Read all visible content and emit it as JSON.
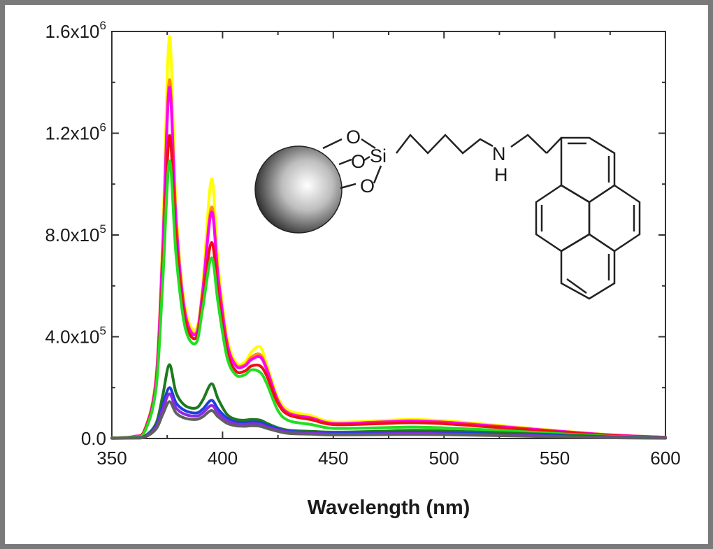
{
  "chart_data": {
    "type": "line",
    "title": "",
    "xlabel": "Wavelength (nm)",
    "ylabel": "",
    "xlim": [
      350,
      600
    ],
    "ylim": [
      0,
      1600000
    ],
    "xticks": [
      {
        "value": 350,
        "label": "350"
      },
      {
        "value": 400,
        "label": "400"
      },
      {
        "value": 450,
        "label": "450"
      },
      {
        "value": 500,
        "label": "500"
      },
      {
        "value": 550,
        "label": "550"
      },
      {
        "value": 600,
        "label": "600"
      }
    ],
    "yticks": [
      {
        "value": 0,
        "label": "0.0",
        "exp": ""
      },
      {
        "value": 400000,
        "label": "4.0x10",
        "exp": "5"
      },
      {
        "value": 800000,
        "label": "8.0x10",
        "exp": "5"
      },
      {
        "value": 1200000,
        "label": "1.2x10",
        "exp": "6"
      },
      {
        "value": 1600000,
        "label": "1.6x10",
        "exp": "6"
      }
    ],
    "grid": false,
    "legend": "none",
    "series": [
      {
        "color": "#ffff00",
        "x": [
          350,
          360,
          365,
          370,
          373,
          376,
          379,
          383,
          388,
          391,
          395,
          398,
          402,
          406,
          410,
          413,
          417,
          420,
          425,
          430,
          440,
          450,
          470,
          485,
          500,
          520,
          550,
          575,
          600
        ],
        "y": [
          2000,
          8000,
          40000,
          250000,
          800000,
          1580000,
          900000,
          520000,
          430000,
          600000,
          1020000,
          680000,
          400000,
          300000,
          300000,
          340000,
          360000,
          290000,
          160000,
          110000,
          90000,
          65000,
          70000,
          75000,
          70000,
          55000,
          32000,
          15000,
          5000
        ]
      },
      {
        "color": "#ff8c00",
        "x": [
          350,
          360,
          365,
          370,
          373,
          376,
          379,
          383,
          388,
          391,
          395,
          398,
          402,
          406,
          410,
          413,
          417,
          420,
          425,
          430,
          440,
          450,
          470,
          485,
          500,
          520,
          550,
          575,
          600
        ],
        "y": [
          2000,
          8000,
          38000,
          240000,
          760000,
          1410000,
          860000,
          500000,
          415000,
          580000,
          910000,
          640000,
          380000,
          290000,
          290000,
          320000,
          330000,
          275000,
          150000,
          100000,
          82000,
          60000,
          65000,
          70000,
          65000,
          52000,
          30000,
          14000,
          5000
        ]
      },
      {
        "color": "#ff00ff",
        "x": [
          350,
          360,
          365,
          370,
          373,
          376,
          379,
          383,
          388,
          391,
          395,
          398,
          402,
          406,
          410,
          413,
          417,
          420,
          425,
          430,
          440,
          450,
          470,
          485,
          500,
          520,
          550,
          575,
          600
        ],
        "y": [
          2000,
          8000,
          37000,
          235000,
          750000,
          1380000,
          850000,
          495000,
          410000,
          575000,
          890000,
          630000,
          375000,
          285000,
          285000,
          310000,
          320000,
          270000,
          148000,
          98000,
          80000,
          58000,
          64000,
          68000,
          64000,
          50000,
          30000,
          14000,
          5000
        ]
      },
      {
        "color": "#ee1111",
        "x": [
          350,
          360,
          365,
          370,
          373,
          376,
          379,
          383,
          388,
          391,
          395,
          398,
          402,
          406,
          410,
          413,
          417,
          420,
          425,
          430,
          440,
          450,
          470,
          485,
          500,
          520,
          550,
          575,
          600
        ],
        "y": [
          2000,
          7000,
          34000,
          210000,
          660000,
          1190000,
          780000,
          470000,
          395000,
          540000,
          770000,
          570000,
          345000,
          265000,
          265000,
          285000,
          285000,
          245000,
          138000,
          92000,
          74000,
          55000,
          58000,
          62000,
          58000,
          46000,
          27000,
          12000,
          4000
        ]
      },
      {
        "color": "#22dd22",
        "x": [
          350,
          360,
          365,
          370,
          373,
          376,
          379,
          383,
          388,
          391,
          395,
          398,
          402,
          406,
          410,
          413,
          417,
          420,
          425,
          430,
          440,
          450,
          470,
          485,
          500,
          520,
          550,
          575,
          600
        ],
        "y": [
          2000,
          6000,
          30000,
          200000,
          620000,
          1090000,
          720000,
          440000,
          375000,
          510000,
          710000,
          530000,
          320000,
          250000,
          250000,
          270000,
          260000,
          215000,
          110000,
          70000,
          55000,
          40000,
          42000,
          45000,
          42000,
          34000,
          20000,
          9000,
          3000
        ]
      },
      {
        "color": "#1e7a1e",
        "x": [
          350,
          360,
          365,
          370,
          373,
          376,
          379,
          383,
          388,
          391,
          395,
          398,
          402,
          406,
          410,
          413,
          417,
          420,
          425,
          430,
          440,
          450,
          470,
          485,
          500,
          520,
          550,
          575,
          600
        ],
        "y": [
          1000,
          3000,
          10000,
          60000,
          170000,
          290000,
          180000,
          130000,
          120000,
          150000,
          215000,
          155000,
          95000,
          75000,
          72000,
          75000,
          72000,
          60000,
          42000,
          32000,
          28000,
          25000,
          28000,
          32000,
          30000,
          24000,
          15000,
          7000,
          2000
        ]
      },
      {
        "color": "#1f3fe0",
        "x": [
          350,
          360,
          365,
          370,
          373,
          376,
          379,
          383,
          388,
          391,
          395,
          398,
          402,
          406,
          410,
          413,
          417,
          420,
          425,
          430,
          440,
          450,
          470,
          485,
          500,
          520,
          550,
          575,
          600
        ],
        "y": [
          1000,
          2000,
          8000,
          50000,
          130000,
          200000,
          140000,
          110000,
          100000,
          115000,
          150000,
          115000,
          80000,
          65000,
          62000,
          65000,
          63000,
          52000,
          38000,
          28000,
          24000,
          20000,
          22000,
          24000,
          22000,
          18000,
          11000,
          5000,
          2000
        ]
      },
      {
        "color": "#8a2be2",
        "x": [
          350,
          360,
          365,
          370,
          373,
          376,
          379,
          383,
          388,
          391,
          395,
          398,
          402,
          406,
          410,
          413,
          417,
          420,
          425,
          430,
          440,
          450,
          470,
          485,
          500,
          520,
          550,
          575,
          600
        ],
        "y": [
          1000,
          2000,
          7000,
          45000,
          115000,
          175000,
          120000,
          95000,
          88000,
          100000,
          130000,
          100000,
          70000,
          58000,
          55000,
          58000,
          55000,
          45000,
          33000,
          25000,
          21000,
          17000,
          18000,
          20000,
          18000,
          15000,
          9000,
          4000,
          1500
        ]
      },
      {
        "color": "#606060",
        "x": [
          350,
          360,
          365,
          370,
          373,
          376,
          379,
          383,
          388,
          391,
          395,
          398,
          402,
          406,
          410,
          413,
          417,
          420,
          425,
          430,
          440,
          450,
          470,
          485,
          500,
          520,
          550,
          575,
          600
        ],
        "y": [
          1000,
          2000,
          6000,
          38000,
          95000,
          145000,
          100000,
          80000,
          75000,
          85000,
          110000,
          85000,
          60000,
          50000,
          48000,
          50000,
          48000,
          40000,
          28000,
          20000,
          17000,
          14000,
          15000,
          16000,
          15000,
          12000,
          7000,
          3000,
          1000
        ]
      }
    ]
  },
  "structure": {
    "o1": "O",
    "o2": "O",
    "o3": "O",
    "si": "Si",
    "n": "N",
    "h": "H"
  }
}
